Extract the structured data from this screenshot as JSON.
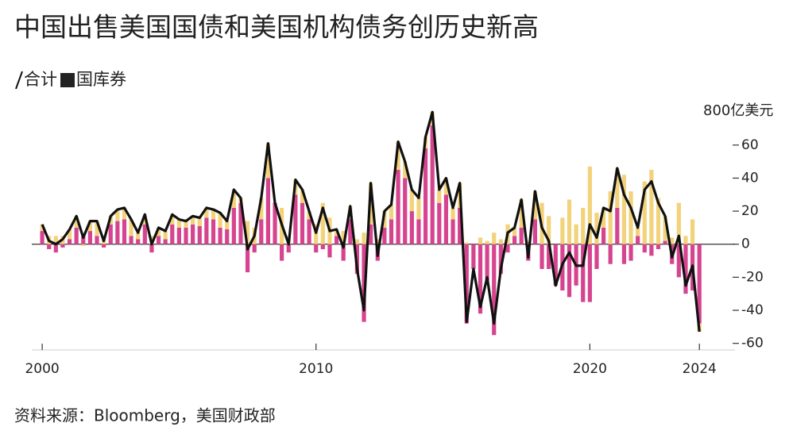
{
  "chart_data": {
    "type": "bar-line",
    "title": "中国出售美国国债和美国机构债务创历史新高",
    "y_unit_label": "800亿美元",
    "source": "资料来源：Bloomberg，美国财政部",
    "x": [
      2000,
      2000.25,
      2000.5,
      2000.75,
      2001,
      2001.25,
      2001.5,
      2001.75,
      2002,
      2002.25,
      2002.5,
      2002.75,
      2003,
      2003.25,
      2003.5,
      2003.75,
      2004,
      2004.25,
      2004.5,
      2004.75,
      2005,
      2005.25,
      2005.5,
      2005.75,
      2006,
      2006.25,
      2006.5,
      2006.75,
      2007,
      2007.25,
      2007.5,
      2007.75,
      2008,
      2008.25,
      2008.5,
      2008.75,
      2009,
      2009.25,
      2009.5,
      2009.75,
      2010,
      2010.25,
      2010.5,
      2010.75,
      2011,
      2011.25,
      2011.5,
      2011.75,
      2012,
      2012.25,
      2012.5,
      2012.75,
      2013,
      2013.25,
      2013.5,
      2013.75,
      2014,
      2014.25,
      2014.5,
      2014.75,
      2015,
      2015.25,
      2015.5,
      2015.75,
      2016,
      2016.25,
      2016.5,
      2016.75,
      2017,
      2017.25,
      2017.5,
      2017.75,
      2018,
      2018.25,
      2018.5,
      2018.75,
      2019,
      2019.25,
      2019.5,
      2019.75,
      2020,
      2020.25,
      2020.5,
      2020.75,
      2021,
      2021.25,
      2021.5,
      2021.75,
      2022,
      2022.25,
      2022.5,
      2022.75,
      2023,
      2023.25,
      2023.5,
      2023.75,
      2024
    ],
    "series": [
      {
        "name": "国库券",
        "color": "#d6448f",
        "legend_color": "#222222",
        "role": "bar",
        "values": [
          8,
          -3,
          -5,
          -2,
          3,
          10,
          5,
          8,
          5,
          -2,
          12,
          14,
          15,
          5,
          3,
          12,
          -5,
          5,
          3,
          12,
          10,
          10,
          12,
          11,
          16,
          15,
          10,
          9,
          22,
          25,
          -17,
          -5,
          15,
          40,
          25,
          -10,
          -5,
          30,
          25,
          15,
          -5,
          -3,
          -8,
          5,
          -10,
          15,
          -18,
          -47,
          12,
          -10,
          10,
          15,
          45,
          40,
          20,
          15,
          58,
          72,
          25,
          30,
          15,
          22,
          -48,
          -15,
          -42,
          -22,
          -55,
          -18,
          -5,
          5,
          10,
          -10,
          15,
          -15,
          -15,
          -25,
          -28,
          -32,
          -25,
          -35,
          -35,
          -15,
          10,
          -12,
          22,
          -12,
          -10,
          5,
          -5,
          -7,
          -3,
          2,
          -12,
          -20,
          -30,
          -28,
          -48
        ]
      },
      {
        "color": "#f2d27a",
        "role": "bar",
        "values": [
          4,
          5,
          5,
          5,
          6,
          7,
          -1,
          6,
          9,
          4,
          5,
          7,
          7,
          10,
          4,
          6,
          5,
          5,
          5,
          6,
          5,
          4,
          5,
          5,
          6,
          6,
          9,
          5,
          11,
          3,
          14,
          10,
          13,
          21,
          0,
          22,
          5,
          9,
          8,
          5,
          12,
          25,
          16,
          4,
          8,
          8,
          3,
          7,
          25,
          3,
          10,
          9,
          17,
          10,
          13,
          13,
          7,
          8,
          8,
          10,
          7,
          15,
          1,
          0,
          4,
          2,
          7,
          3,
          12,
          5,
          17,
          2,
          17,
          25,
          17,
          0,
          16,
          27,
          12,
          22,
          47,
          19,
          12,
          32,
          24,
          42,
          32,
          5,
          38,
          45,
          28,
          15,
          4,
          25,
          5,
          15,
          -5
        ]
      },
      {
        "name": "合计",
        "color": "#111111",
        "role": "line",
        "values": [
          12,
          2,
          0,
          3,
          9,
          17,
          4,
          14,
          14,
          2,
          17,
          21,
          22,
          15,
          7,
          18,
          0,
          10,
          8,
          18,
          15,
          14,
          17,
          16,
          22,
          21,
          19,
          14,
          33,
          28,
          -3,
          5,
          28,
          61,
          25,
          12,
          0,
          39,
          33,
          20,
          7,
          22,
          8,
          9,
          -2,
          23,
          -15,
          -40,
          37,
          -7,
          20,
          24,
          62,
          50,
          33,
          28,
          65,
          80,
          33,
          40,
          22,
          37,
          -47,
          -15,
          -38,
          -20,
          -48,
          -15,
          7,
          10,
          27,
          -8,
          32,
          10,
          2,
          -25,
          -12,
          -5,
          -13,
          -13,
          12,
          4,
          22,
          20,
          46,
          30,
          22,
          10,
          33,
          38,
          25,
          17,
          -8,
          5,
          -25,
          -13,
          -53
        ]
      }
    ],
    "xlim": [
      1999.62,
      2025.3
    ],
    "xticks": [
      2000,
      2010,
      2020,
      2024
    ],
    "ylim": [
      -64,
      82
    ],
    "yticks": [
      60,
      40,
      20,
      0,
      -20,
      -40,
      -60
    ]
  }
}
